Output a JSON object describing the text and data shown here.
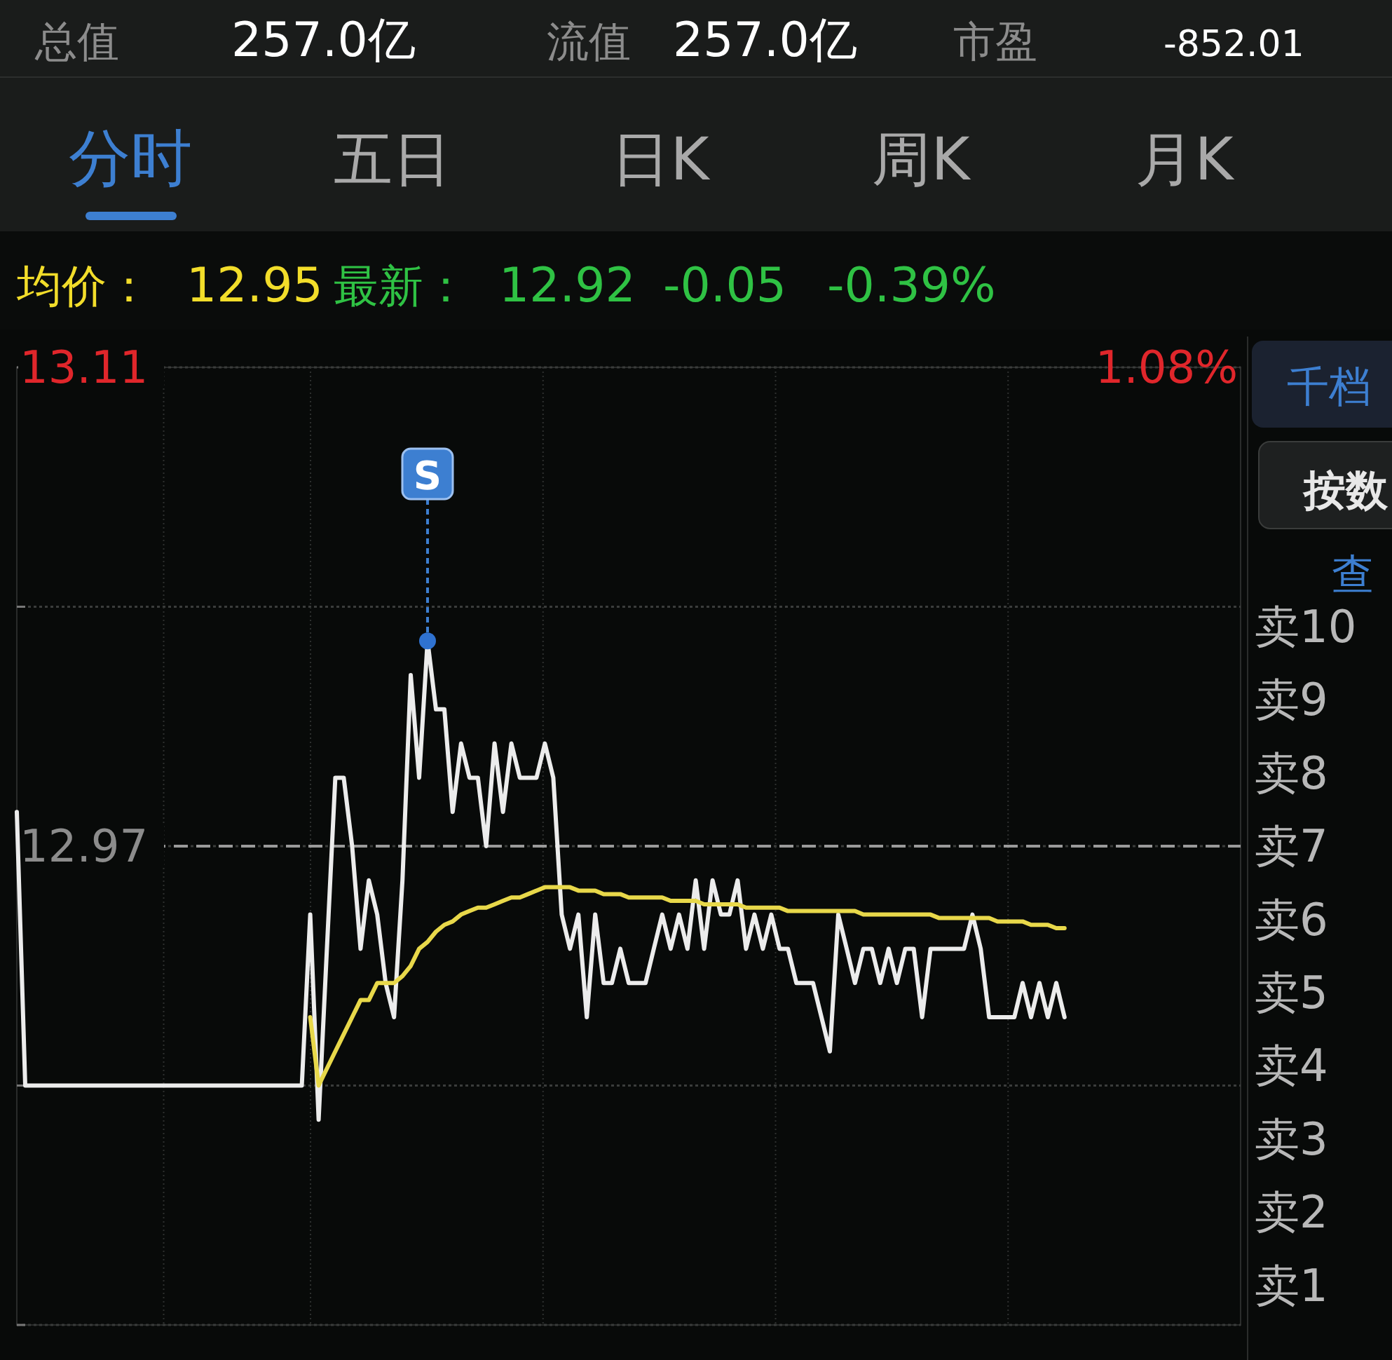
{
  "chart_data": {
    "type": "line",
    "categories": [
      null,
      null,
      null,
      null,
      null,
      null,
      null,
      null,
      null,
      null,
      null,
      null,
      null,
      null,
      null,
      null,
      null,
      null,
      null,
      null,
      null,
      null,
      null,
      null,
      null,
      null,
      null,
      null,
      null,
      null,
      null,
      null,
      null,
      null,
      null,
      null,
      null,
      null,
      null,
      null,
      null,
      null,
      null,
      null,
      null,
      null,
      null,
      null,
      null,
      null,
      null,
      null,
      null,
      null,
      null,
      null,
      null,
      null,
      null,
      null,
      null,
      null,
      null,
      null,
      null,
      null,
      null,
      null,
      null,
      null,
      null,
      null,
      null,
      null,
      null,
      null,
      null,
      null,
      null,
      null,
      null,
      null,
      null,
      null,
      null,
      null,
      null,
      null,
      null,
      null,
      null,
      null,
      null,
      null,
      null,
      null,
      null,
      null,
      null,
      null,
      null,
      null,
      null,
      null,
      null,
      null,
      null,
      null,
      null,
      null,
      null,
      null,
      null,
      null,
      null,
      null,
      null,
      null,
      null,
      null,
      null,
      null,
      null,
      null,
      null,
      null,
      null,
      null,
      null,
      null,
      null,
      null,
      null,
      null,
      null,
      null,
      null,
      null,
      null,
      null,
      null,
      null,
      null,
      null,
      null,
      null
    ],
    "series": [
      {
        "color": "#ececec",
        "values": [
          12.98,
          12.9,
          12.9,
          12.9,
          12.9,
          12.9,
          12.9,
          12.9,
          12.9,
          12.9,
          12.9,
          12.9,
          12.9,
          12.9,
          12.9,
          12.9,
          12.9,
          12.9,
          12.9,
          12.9,
          12.9,
          12.9,
          12.9,
          12.9,
          12.9,
          12.9,
          12.9,
          12.9,
          12.9,
          12.9,
          12.9,
          12.9,
          12.9,
          12.9,
          12.9,
          12.95,
          12.89,
          12.94,
          12.99,
          12.99,
          12.97,
          12.94,
          12.96,
          12.95,
          12.93,
          12.92,
          12.96,
          13.02,
          12.99,
          13.03,
          13.01,
          13.01,
          12.98,
          13.0,
          12.99,
          12.99,
          12.97,
          13.0,
          12.98,
          13.0,
          12.99,
          12.99,
          12.99,
          13.0,
          12.99,
          12.95,
          12.94,
          12.95,
          12.92,
          12.95,
          12.93,
          12.93,
          12.94,
          12.93,
          12.93,
          12.93,
          12.94,
          12.95,
          12.94,
          12.95,
          12.94,
          12.96,
          12.94,
          12.96,
          12.95,
          12.95,
          12.96,
          12.94,
          12.95,
          12.94,
          12.95,
          12.94,
          12.94,
          12.93,
          12.93,
          12.93,
          12.92,
          12.91,
          12.95,
          12.94,
          12.93,
          12.94,
          12.94,
          12.93,
          12.94,
          12.93,
          12.94,
          12.94,
          12.92,
          12.94,
          12.94,
          12.94,
          12.94,
          12.94,
          12.95,
          12.94,
          12.92,
          12.92,
          12.92,
          12.92,
          12.93,
          12.92,
          12.93,
          12.92,
          12.93,
          12.92,
          null,
          null,
          null,
          null,
          null,
          null,
          null,
          null,
          null,
          null,
          null,
          null,
          null,
          null,
          null,
          null,
          null,
          null,
          null,
          null
        ]
      },
      {
        "color": "#e8d84a",
        "values": [
          null,
          null,
          null,
          null,
          null,
          null,
          null,
          null,
          null,
          null,
          null,
          null,
          null,
          null,
          null,
          null,
          null,
          null,
          null,
          null,
          null,
          null,
          null,
          null,
          null,
          null,
          null,
          null,
          null,
          null,
          null,
          null,
          null,
          null,
          null,
          12.92,
          12.9,
          12.905,
          12.91,
          12.915,
          12.92,
          12.925,
          12.925,
          12.93,
          12.93,
          12.93,
          12.932,
          12.935,
          12.94,
          12.942,
          12.945,
          12.947,
          12.948,
          12.95,
          12.951,
          12.952,
          12.952,
          12.953,
          12.954,
          12.955,
          12.955,
          12.956,
          12.957,
          12.958,
          12.958,
          12.958,
          12.958,
          12.957,
          12.957,
          12.957,
          12.956,
          12.956,
          12.956,
          12.955,
          12.955,
          12.955,
          12.955,
          12.955,
          12.954,
          12.954,
          12.954,
          12.954,
          12.953,
          12.953,
          12.953,
          12.953,
          12.953,
          12.952,
          12.952,
          12.952,
          12.952,
          12.952,
          12.951,
          12.951,
          12.951,
          12.951,
          12.951,
          12.951,
          12.951,
          12.951,
          12.951,
          12.95,
          12.95,
          12.95,
          12.95,
          12.95,
          12.95,
          12.95,
          12.95,
          12.95,
          12.949,
          12.949,
          12.949,
          12.949,
          12.949,
          12.949,
          12.949,
          12.948,
          12.948,
          12.948,
          12.948,
          12.947,
          12.947,
          12.947,
          12.946,
          12.946,
          null,
          null,
          null,
          null,
          null,
          null,
          null,
          null,
          null,
          null,
          null,
          null,
          null,
          null,
          null,
          null,
          null,
          null,
          null,
          null
        ]
      }
    ],
    "ylim": [
      12.83,
      13.11
    ],
    "yticks": [
      {
        "value": 12.83,
        "label": null
      },
      {
        "value": 12.9,
        "label": null
      },
      {
        "value": 12.97,
        "label": "12.97"
      },
      {
        "value": 13.04,
        "label": null
      },
      {
        "value": 13.11,
        "label": "13.11"
      }
    ],
    "ref_lines": [
      {
        "axis": "y",
        "value": 12.97,
        "line_style": "dashed",
        "color": "#9a9a9a"
      }
    ],
    "grid": true,
    "annotations": [
      "总值",
      "257.0亿",
      "流值",
      "257.0亿",
      "市盈",
      "-852.01",
      "分时",
      "五日",
      "日K",
      "周K",
      "月K",
      "均价：",
      "12.95",
      "最新：",
      "12.92",
      "-0.05",
      "-0.39%",
      "千档",
      "按数",
      "查",
      "卖10",
      "卖9",
      "卖8",
      "卖7",
      "卖6",
      "卖5",
      "卖4",
      "卖3",
      "卖2",
      "卖1",
      "S",
      "1.08%"
    ]
  }
}
